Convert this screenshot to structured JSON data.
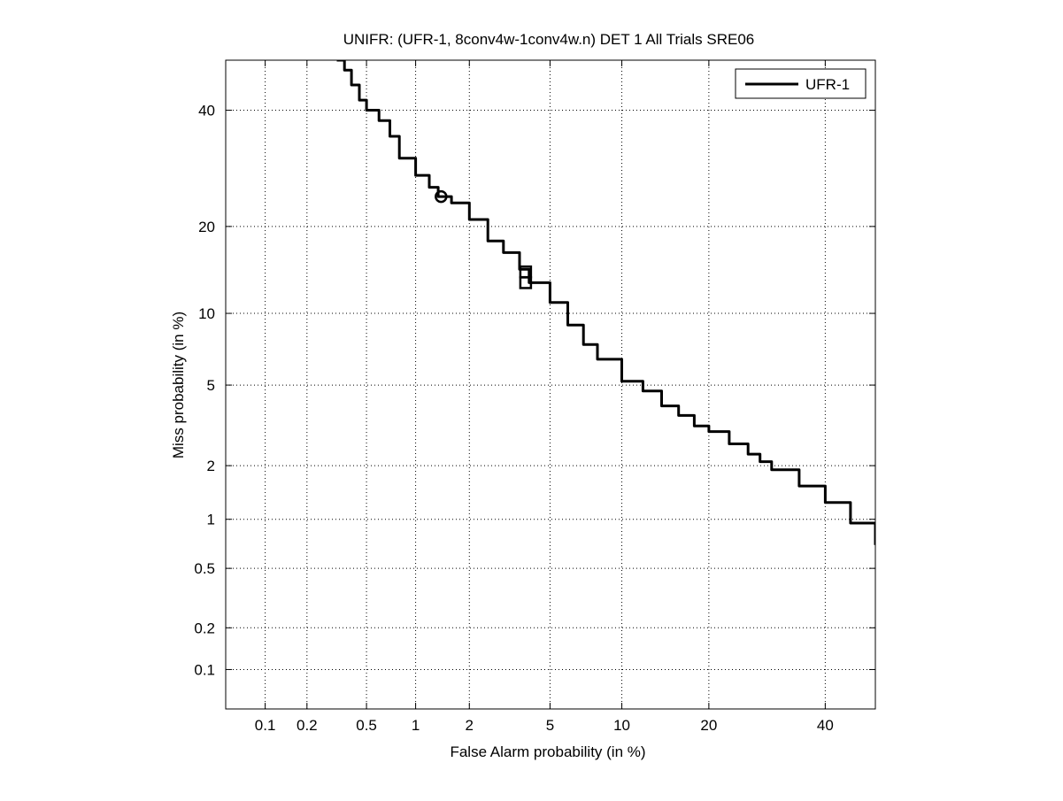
{
  "chart_data": {
    "type": "line",
    "title": "UNIFR: (UFR-1, 8conv4w-1conv4w.n) DET 1 All Trials SRE06",
    "xlabel": "False Alarm probability (in %)",
    "ylabel": "Miss probability (in %)",
    "xscale": "probit",
    "yscale": "probit",
    "xlim": [
      0.05,
      50
    ],
    "ylim": [
      0.05,
      50
    ],
    "xticks": [
      0.1,
      0.2,
      0.5,
      1,
      2,
      5,
      10,
      20,
      40
    ],
    "xtick_labels": [
      "0.1",
      "0.2",
      "0.5",
      "1",
      "2",
      "5",
      "10",
      "20",
      "40"
    ],
    "yticks": [
      0.1,
      0.2,
      0.5,
      1,
      2,
      5,
      10,
      20,
      40
    ],
    "ytick_labels": [
      "0.1",
      "0.2",
      "0.5",
      "1",
      "2",
      "5",
      "10",
      "20",
      "40"
    ],
    "grid": true,
    "legend_position": "top-right",
    "series": [
      {
        "name": "UFR-1",
        "color": "#000000",
        "x": [
          0.32,
          0.36,
          0.4,
          0.45,
          0.5,
          0.6,
          0.7,
          0.8,
          1.0,
          1.2,
          1.35,
          1.6,
          2.0,
          2.5,
          3.0,
          3.6,
          4.0,
          5.0,
          6.0,
          7.0,
          8.0,
          10.0,
          12.0,
          14.0,
          16.0,
          18.0,
          20.0,
          23.0,
          26.0,
          28.0,
          30.0,
          35.0,
          40.0,
          45.0,
          50.0
        ],
        "y": [
          50.0,
          48.0,
          45.0,
          42.0,
          40.0,
          38.0,
          35.0,
          31.0,
          28.0,
          26.0,
          24.5,
          23.5,
          21.0,
          18.0,
          16.5,
          14.5,
          13.0,
          11.0,
          9.0,
          7.5,
          6.5,
          5.2,
          4.7,
          4.0,
          3.6,
          3.2,
          3.0,
          2.6,
          2.3,
          2.1,
          1.9,
          1.55,
          1.25,
          0.95,
          0.7
        ]
      }
    ],
    "markers": [
      {
        "shape": "circle",
        "x": 1.4,
        "y": 24.5
      },
      {
        "shape": "square",
        "x": 3.85,
        "y": 14.2
      },
      {
        "shape": "square",
        "x": 3.85,
        "y": 13.0
      }
    ]
  }
}
